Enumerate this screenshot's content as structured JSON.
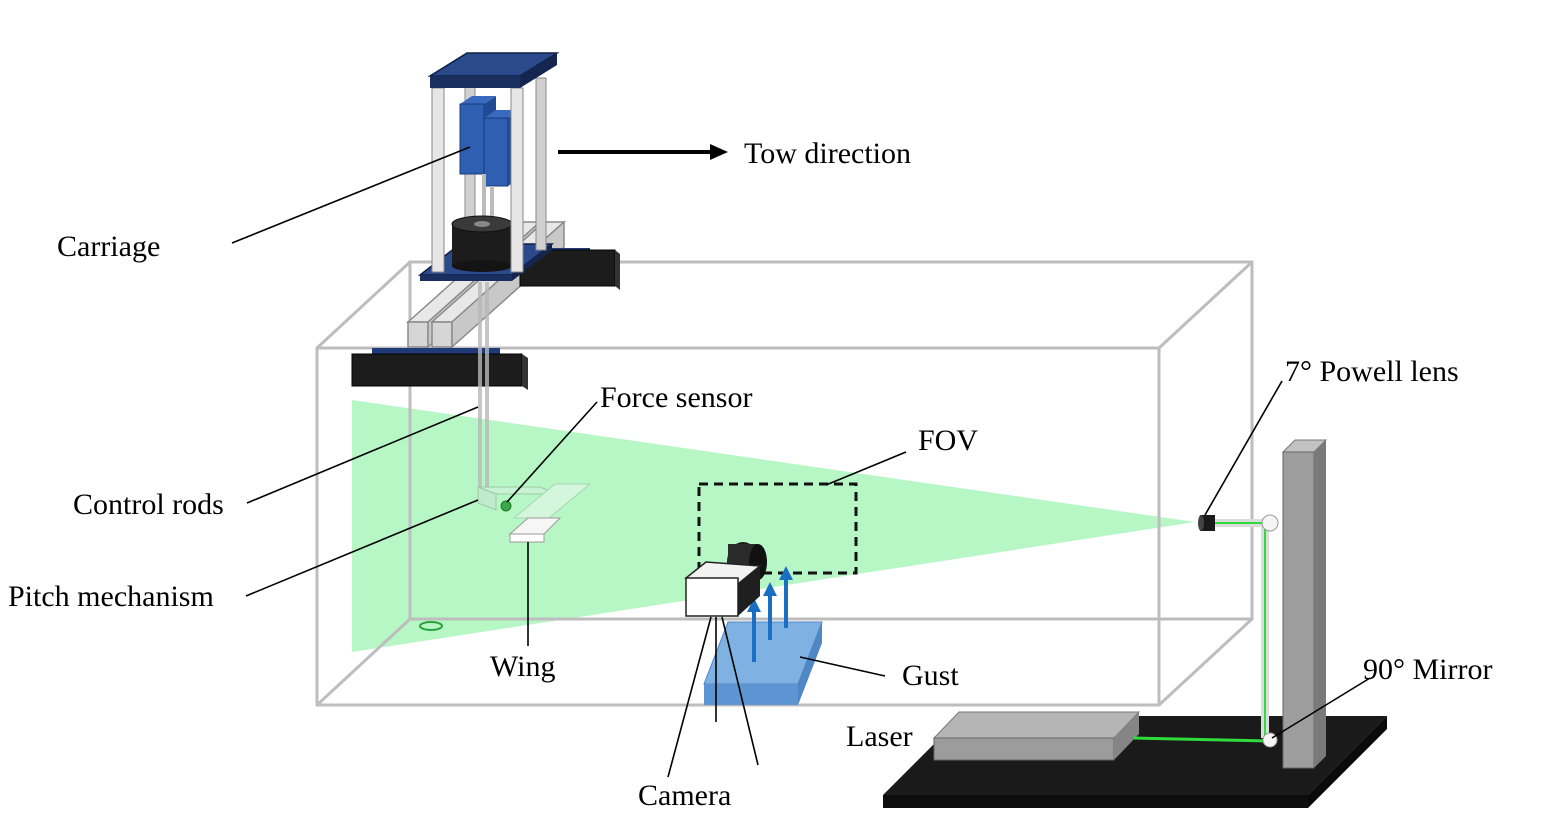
{
  "labels": {
    "carriage": "Carriage",
    "tow_direction": "Tow direction",
    "force_sensor": "Force sensor",
    "fov": "FOV",
    "powell_lens": "7° Powell lens",
    "control_rods": "Control rods",
    "pitch_mechanism": "Pitch mechanism",
    "wing": "Wing",
    "gust": "Gust",
    "mirror": "90° Mirror",
    "laser": "Laser",
    "camera": "Camera"
  },
  "colors": {
    "tank_outline": "#bdbdbd",
    "laser_sheet": "#b3f7c3",
    "carriage_plate": "#1f3a78",
    "carriage_block": "#2f5fb0",
    "rail": "#d8d8d8",
    "dark_block": "#1c1c1c",
    "gust_plate": "#6fa6dc",
    "gust_arrow": "#1a6fc2",
    "stand": "#9e9e9e",
    "base": "#1a1a1a",
    "laser_beam": "#2fdc3c"
  }
}
